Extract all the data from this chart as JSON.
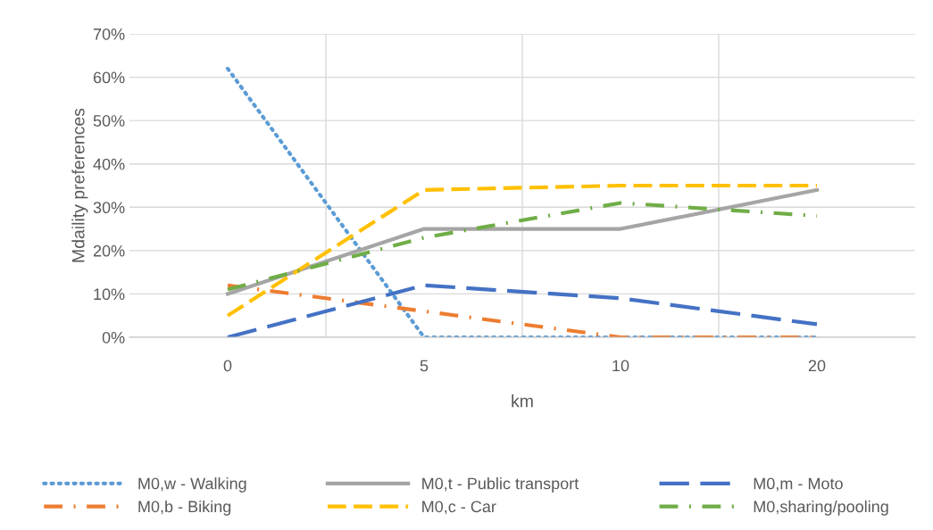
{
  "chart_data": {
    "type": "line",
    "xlabel": "km",
    "ylabel": "Mdaility preferences",
    "categories": [
      "0",
      "5",
      "10",
      "20"
    ],
    "ylim": [
      0,
      70
    ],
    "yticks": [
      {
        "value": 0,
        "label": "0%"
      },
      {
        "value": 10,
        "label": "10%"
      },
      {
        "value": 20,
        "label": "20%"
      },
      {
        "value": 30,
        "label": "30%"
      },
      {
        "value": 40,
        "label": "40%"
      },
      {
        "value": 50,
        "label": "50%"
      },
      {
        "value": 60,
        "label": "60%"
      },
      {
        "value": 70,
        "label": "70%"
      }
    ],
    "grid": true,
    "legend": "bottom",
    "marker": "none",
    "series": [
      {
        "name": "M0,w - Walking",
        "color": "#5b9bd5",
        "line_style": "dotted",
        "values": [
          62,
          0,
          0,
          0
        ]
      },
      {
        "name": "M0,b - Biking",
        "color": "#ed7d31",
        "line_style": "dashdot",
        "values": [
          12,
          6,
          0,
          0
        ]
      },
      {
        "name": "M0,t - Public transport",
        "color": "#a5a5a5",
        "line_style": "solid",
        "values": [
          10,
          25,
          25,
          34
        ]
      },
      {
        "name": "M0,c - Car",
        "color": "#ffc000",
        "line_style": "dashed",
        "values": [
          5,
          34,
          35,
          35
        ]
      },
      {
        "name": "M0,m - Moto",
        "color": "#4472c4",
        "line_style": "longdash",
        "values": [
          0,
          12,
          9,
          3
        ]
      },
      {
        "name": "M0,sharing/pooling",
        "color": "#70ad47",
        "line_style": "dashdot",
        "values": [
          11,
          23,
          31,
          28
        ]
      }
    ]
  }
}
